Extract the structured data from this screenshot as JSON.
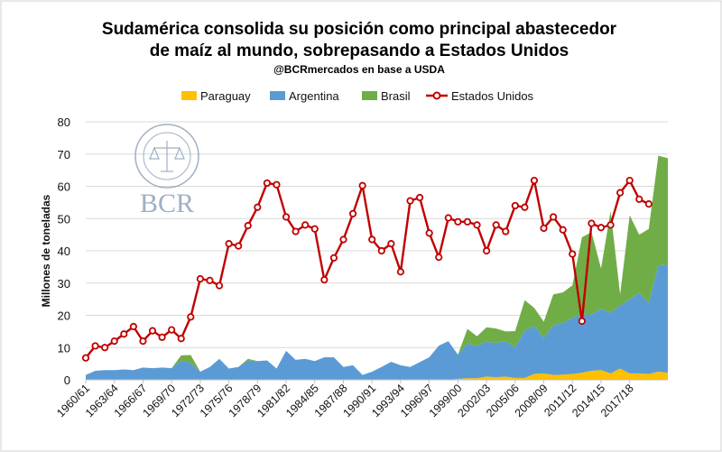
{
  "chart_data": {
    "type": "area",
    "title_line1": "Sudamérica consolida su posición como principal abastecedor",
    "title_line2": "de maíz al mundo, sobrepasando a Estados Unidos",
    "subtitle": "@BCRmercados en base a USDA",
    "ylabel": "Millones de toneladas",
    "xlabel": "",
    "ylim": [
      0,
      80
    ],
    "yticks": [
      0,
      10,
      20,
      30,
      40,
      50,
      60,
      70,
      80
    ],
    "grid": true,
    "legend_position": "top",
    "x_tick_labels": [
      "1960/61",
      "1963/64",
      "1966/67",
      "1969/70",
      "1972/73",
      "1975/76",
      "1978/79",
      "1981/82",
      "1984/85",
      "1987/88",
      "1990/91",
      "1993/94",
      "1996/97",
      "1999/00",
      "2002/03",
      "2005/06",
      "2008/09",
      "2011/12",
      "2014/15",
      "2017/18"
    ],
    "x_start_year": 1960,
    "series": [
      {
        "name": "Paraguay",
        "kind": "stacked-area",
        "color": "#ffc000",
        "values": [
          0,
          0,
          0,
          0,
          0,
          0,
          0,
          0,
          0,
          0,
          0,
          0,
          0,
          0,
          0,
          0,
          0,
          0,
          0,
          0,
          0,
          0,
          0,
          0,
          0,
          0,
          0,
          0,
          0,
          0,
          0,
          0,
          0,
          0,
          0,
          0,
          0,
          0,
          0,
          0.3,
          0.5,
          0.5,
          1,
          0.8,
          1,
          0.6,
          0.6,
          1.8,
          2,
          1.5,
          1.6,
          1.8,
          2.2,
          2.8,
          3,
          2,
          3.5,
          2,
          2,
          1.8,
          2.5,
          2.2
        ]
      },
      {
        "name": "Argentina",
        "kind": "stacked-area",
        "color": "#5b9bd5",
        "values": [
          1.5,
          2.8,
          3,
          3,
          3.2,
          3,
          3.8,
          3.6,
          3.8,
          3.6,
          6,
          5.2,
          2.5,
          4,
          6.5,
          3.5,
          4,
          6,
          5.8,
          6,
          3.5,
          9,
          6.2,
          6.5,
          5.8,
          7,
          7,
          4,
          4.5,
          1.5,
          2.5,
          4,
          5.6,
          4.5,
          4,
          5.5,
          7,
          10.6,
          12,
          7.5,
          10.8,
          10,
          10.8,
          10.6,
          11,
          9.5,
          14.6,
          15,
          11,
          15.5,
          16,
          17.5,
          18,
          17.5,
          19,
          18.8,
          19.5,
          23,
          25,
          22,
          33,
          33.5
        ]
      },
      {
        "name": "Brasil",
        "kind": "stacked-area",
        "color": "#70ad47",
        "values": [
          0,
          0,
          0,
          0,
          0,
          0,
          0,
          0,
          0,
          0,
          1.6,
          2.5,
          0,
          0,
          0,
          0,
          0,
          0.5,
          0,
          0,
          0,
          0,
          0,
          0,
          0,
          0,
          0,
          0,
          0,
          0,
          0,
          0,
          0,
          0,
          0,
          0,
          0,
          0,
          0,
          0,
          4.5,
          3,
          4.5,
          4.5,
          3,
          5,
          9.5,
          5.5,
          5,
          9.5,
          9.5,
          10,
          24,
          25.5,
          12.5,
          31.5,
          3.5,
          26,
          18,
          23,
          34,
          33
        ]
      },
      {
        "name": "Estados Unidos",
        "kind": "line",
        "color": "#c00000",
        "values": [
          6.8,
          10.5,
          10,
          12,
          14.2,
          16.5,
          12,
          15.2,
          13.2,
          15.5,
          12.8,
          19.5,
          31.3,
          30.8,
          29.2,
          42.2,
          41.5,
          47.8,
          53.5,
          61,
          60.5,
          50.5,
          46,
          48,
          46.8,
          31,
          37.8,
          43.5,
          51.5,
          60.2,
          43.5,
          40,
          42.2,
          33.5,
          55.5,
          56.5,
          45.5,
          38,
          50.2,
          49,
          49,
          48,
          40,
          48,
          46,
          54,
          53.5,
          61.8,
          47,
          50.5,
          46.5,
          39,
          18.2,
          48.5,
          47.2,
          48,
          58,
          61.8,
          56,
          54.5
        ]
      }
    ]
  },
  "logo": {
    "text": "BCR",
    "seal_ring_text": "BOLSA DE COMERCIO DE ROSARIO",
    "color": "#8fa2bb"
  }
}
